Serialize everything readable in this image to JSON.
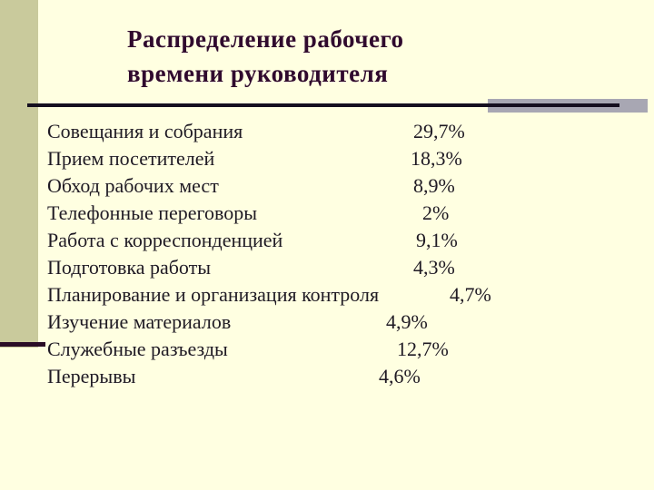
{
  "slide": {
    "title_line1": "Распределение рабочего",
    "title_line2": "времени руководителя",
    "rows": [
      {
        "label": "Совещания и собрания",
        "value": "29,7%"
      },
      {
        "label": "Прием посетителей",
        "value": "18,3%"
      },
      {
        "label": "Обход рабочих мест",
        "value": "8,9%"
      },
      {
        "label": "Телефонные переговоры",
        "value": "2%"
      },
      {
        "label": "Работа с корреспонденцией",
        "value": "9,1%"
      },
      {
        "label": "Подготовка работы",
        "value": "4,3%"
      },
      {
        "label": "Планирование и организация контроля",
        "value": "4,7%"
      },
      {
        "label": "Изучение материалов",
        "value": "4,9%"
      },
      {
        "label": "Служебные разъезды",
        "value": "12,7%"
      },
      {
        "label": "Перерывы",
        "value": "4,6%"
      }
    ],
    "colors": {
      "background": "#FFFFE1",
      "left_bar": "#C9CA9C",
      "title_text": "#300A2E",
      "body_text": "#1F1A24",
      "rule": "#150F1F",
      "gray_accent": "#A8A7B3",
      "left_rule": "#2A0C26"
    }
  }
}
